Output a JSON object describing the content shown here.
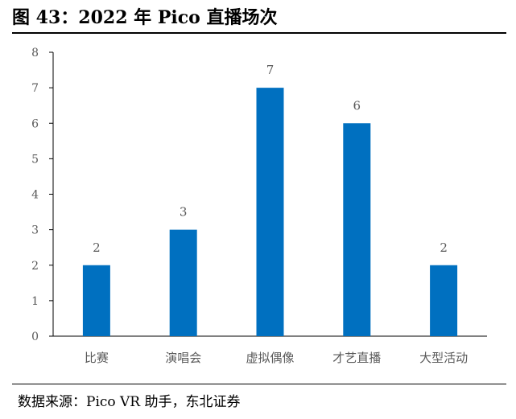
{
  "header": {
    "title": "图 43：2022 年 Pico 直播场次"
  },
  "footer": {
    "source": "数据来源：Pico VR 助手，东北证券"
  },
  "chart_data": {
    "type": "bar",
    "categories": [
      "比赛",
      "演唱会",
      "虚拟偶像",
      "才艺直播",
      "大型活动"
    ],
    "values": [
      2,
      3,
      7,
      6,
      2
    ],
    "data_labels": [
      "2",
      "3",
      "7",
      "6",
      "2"
    ],
    "y_ticks": [
      "0",
      "1",
      "2",
      "3",
      "4",
      "5",
      "6",
      "7",
      "8"
    ],
    "ylim": [
      0,
      8
    ],
    "grid": false,
    "legend": "none",
    "colors": {
      "bar": "#0070C0",
      "axis": "#000000",
      "label": "#595959"
    }
  }
}
